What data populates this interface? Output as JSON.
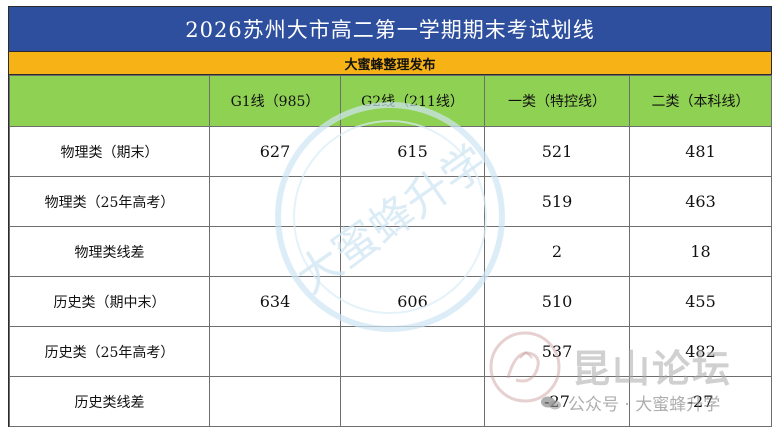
{
  "title": "2026苏州大市高二第一学期期末考试划线",
  "subtitle": "大蜜蜂整理发布",
  "header": [
    "",
    "G1线（985）",
    "G2线（211线）",
    "一类（特控线）",
    "二类（本科线）"
  ],
  "rows": [
    {
      "label": "物理类（期末）",
      "g1": "627",
      "g2": "615",
      "c1": "521",
      "c2": "481"
    },
    {
      "label": "物理类（25年高考）",
      "g1": "",
      "g2": "",
      "c1": "519",
      "c2": "463"
    },
    {
      "label": "物理类线差",
      "g1": "",
      "g2": "",
      "c1": "2",
      "c2": "18"
    },
    {
      "label": "历史类（期中末）",
      "g1": "634",
      "g2": "606",
      "c1": "510",
      "c2": "455"
    },
    {
      "label": "历史类（25年高考）",
      "g1": "",
      "g2": "",
      "c1": "537",
      "c2": "482"
    },
    {
      "label": "历史类线差",
      "g1": "",
      "g2": "",
      "c1": "-27",
      "c2": "-27"
    }
  ],
  "watermarks": {
    "center_text": "大蜜蜂升学",
    "forum_text": "昆山论坛",
    "wechat_text": "公众号 · 大蜜蜂升学"
  },
  "colors": {
    "title_bg": "#2e4f9d",
    "subtitle_bg": "#f7b216",
    "header_bg": "#8fd152",
    "watermark": "#cfe6f3"
  }
}
